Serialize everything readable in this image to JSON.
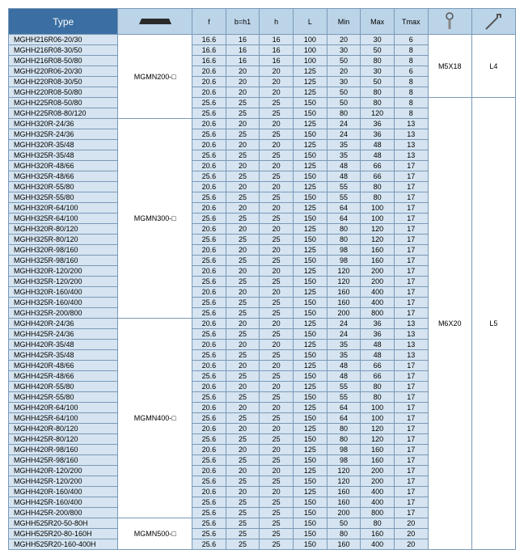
{
  "header": {
    "type": "Type",
    "f": "f",
    "bh1": "b=h1",
    "h": "h",
    "L": "L",
    "min": "Min",
    "max": "Max",
    "tmax": "Tmax"
  },
  "screws": [
    {
      "label": "M5X18",
      "wrench": "L4"
    },
    {
      "label": "M6X20",
      "wrench": "L5"
    }
  ],
  "groups": [
    {
      "insert": "MGMN200-□",
      "screw_rowspan": 6,
      "screw_idx": 0,
      "rows": [
        {
          "type": "MGHH216R06-20/30",
          "f": "16.6",
          "b": "16",
          "h": "16",
          "L": "100",
          "min": "20",
          "max": "30",
          "t": "6"
        },
        {
          "type": "MGHH216R08-30/50",
          "f": "16.6",
          "b": "16",
          "h": "16",
          "L": "100",
          "min": "30",
          "max": "50",
          "t": "8"
        },
        {
          "type": "MGHH216R08-50/80",
          "f": "16.6",
          "b": "16",
          "h": "16",
          "L": "100",
          "min": "50",
          "max": "80",
          "t": "8"
        },
        {
          "type": "MGHH220R06-20/30",
          "f": "20.6",
          "b": "20",
          "h": "20",
          "L": "125",
          "min": "20",
          "max": "30",
          "t": "6"
        },
        {
          "type": "MGHH220R08-30/50",
          "f": "20.6",
          "b": "20",
          "h": "20",
          "L": "125",
          "min": "30",
          "max": "50",
          "t": "8"
        },
        {
          "type": "MGHH220R08-50/80",
          "f": "20.6",
          "b": "20",
          "h": "20",
          "L": "125",
          "min": "50",
          "max": "80",
          "t": "8"
        },
        {
          "type": "MGHH225R08-50/80",
          "f": "25.6",
          "b": "25",
          "h": "25",
          "L": "150",
          "min": "50",
          "max": "80",
          "t": "8"
        },
        {
          "type": "MGHH225R08-80/120",
          "f": "25.6",
          "b": "25",
          "h": "25",
          "L": "150",
          "min": "80",
          "max": "120",
          "t": "8"
        }
      ]
    },
    {
      "insert": "MGMN300-□",
      "rows": [
        {
          "type": "MGHH320R-24/36",
          "f": "20.6",
          "b": "20",
          "h": "20",
          "L": "125",
          "min": "24",
          "max": "36",
          "t": "13"
        },
        {
          "type": "MGHH325R-24/36",
          "f": "25.6",
          "b": "25",
          "h": "25",
          "L": "150",
          "min": "24",
          "max": "36",
          "t": "13"
        },
        {
          "type": "MGHH320R-35/48",
          "f": "20.6",
          "b": "20",
          "h": "20",
          "L": "125",
          "min": "35",
          "max": "48",
          "t": "13"
        },
        {
          "type": "MGHH325R-35/48",
          "f": "25.6",
          "b": "25",
          "h": "25",
          "L": "150",
          "min": "35",
          "max": "48",
          "t": "13"
        },
        {
          "type": "MGHH320R-48/66",
          "f": "20.6",
          "b": "20",
          "h": "20",
          "L": "125",
          "min": "48",
          "max": "66",
          "t": "17"
        },
        {
          "type": "MGHH325R-48/66",
          "f": "25.6",
          "b": "25",
          "h": "25",
          "L": "150",
          "min": "48",
          "max": "66",
          "t": "17"
        },
        {
          "type": "MGHH320R-55/80",
          "f": "20.6",
          "b": "20",
          "h": "20",
          "L": "125",
          "min": "55",
          "max": "80",
          "t": "17"
        },
        {
          "type": "MGHH325R-55/80",
          "f": "25.6",
          "b": "25",
          "h": "25",
          "L": "150",
          "min": "55",
          "max": "80",
          "t": "17"
        },
        {
          "type": "MGHH320R-64/100",
          "f": "20.6",
          "b": "20",
          "h": "20",
          "L": "125",
          "min": "64",
          "max": "100",
          "t": "17"
        },
        {
          "type": "MGHH325R-64/100",
          "f": "25.6",
          "b": "25",
          "h": "25",
          "L": "150",
          "min": "64",
          "max": "100",
          "t": "17"
        },
        {
          "type": "MGHH320R-80/120",
          "f": "20.6",
          "b": "20",
          "h": "20",
          "L": "125",
          "min": "80",
          "max": "120",
          "t": "17"
        },
        {
          "type": "MGHH325R-80/120",
          "f": "25.6",
          "b": "25",
          "h": "25",
          "L": "150",
          "min": "80",
          "max": "120",
          "t": "17"
        },
        {
          "type": "MGHH320R-98/160",
          "f": "20.6",
          "b": "20",
          "h": "20",
          "L": "125",
          "min": "98",
          "max": "160",
          "t": "17"
        },
        {
          "type": "MGHH325R-98/160",
          "f": "25.6",
          "b": "25",
          "h": "25",
          "L": "150",
          "min": "98",
          "max": "160",
          "t": "17"
        },
        {
          "type": "MGHH320R-120/200",
          "f": "20.6",
          "b": "20",
          "h": "20",
          "L": "125",
          "min": "120",
          "max": "200",
          "t": "17"
        },
        {
          "type": "MGHH325R-120/200",
          "f": "25.6",
          "b": "25",
          "h": "25",
          "L": "150",
          "min": "120",
          "max": "200",
          "t": "17"
        },
        {
          "type": "MGHH320R-160/400",
          "f": "20.6",
          "b": "20",
          "h": "20",
          "L": "125",
          "min": "160",
          "max": "400",
          "t": "17"
        },
        {
          "type": "MGHH325R-160/400",
          "f": "25.6",
          "b": "25",
          "h": "25",
          "L": "150",
          "min": "160",
          "max": "400",
          "t": "17"
        },
        {
          "type": "MGHH325R-200/800",
          "f": "25.6",
          "b": "25",
          "h": "25",
          "L": "150",
          "min": "200",
          "max": "800",
          "t": "17"
        }
      ]
    },
    {
      "insert": "MGMN400-□",
      "rows": [
        {
          "type": "MGHH420R-24/36",
          "f": "20.6",
          "b": "20",
          "h": "20",
          "L": "125",
          "min": "24",
          "max": "36",
          "t": "13"
        },
        {
          "type": "MGHH425R-24/36",
          "f": "25.6",
          "b": "25",
          "h": "25",
          "L": "150",
          "min": "24",
          "max": "36",
          "t": "13"
        },
        {
          "type": "MGHH420R-35/48",
          "f": "20.6",
          "b": "20",
          "h": "20",
          "L": "125",
          "min": "35",
          "max": "48",
          "t": "13"
        },
        {
          "type": "MGHH425R-35/48",
          "f": "25.6",
          "b": "25",
          "h": "25",
          "L": "150",
          "min": "35",
          "max": "48",
          "t": "13"
        },
        {
          "type": "MGHH420R-48/66",
          "f": "20.6",
          "b": "20",
          "h": "20",
          "L": "125",
          "min": "48",
          "max": "66",
          "t": "17"
        },
        {
          "type": "MGHH425R-48/66",
          "f": "25.6",
          "b": "25",
          "h": "25",
          "L": "150",
          "min": "48",
          "max": "66",
          "t": "17"
        },
        {
          "type": "MGHH420R-55/80",
          "f": "20.6",
          "b": "20",
          "h": "20",
          "L": "125",
          "min": "55",
          "max": "80",
          "t": "17"
        },
        {
          "type": "MGHH425R-55/80",
          "f": "25.6",
          "b": "25",
          "h": "25",
          "L": "150",
          "min": "55",
          "max": "80",
          "t": "17"
        },
        {
          "type": "MGHH420R-64/100",
          "f": "20.6",
          "b": "20",
          "h": "20",
          "L": "125",
          "min": "64",
          "max": "100",
          "t": "17"
        },
        {
          "type": "MGHH425R-64/100",
          "f": "25.6",
          "b": "25",
          "h": "25",
          "L": "150",
          "min": "64",
          "max": "100",
          "t": "17"
        },
        {
          "type": "MGHH420R-80/120",
          "f": "20.6",
          "b": "20",
          "h": "20",
          "L": "125",
          "min": "80",
          "max": "120",
          "t": "17"
        },
        {
          "type": "MGHH425R-80/120",
          "f": "25.6",
          "b": "25",
          "h": "25",
          "L": "150",
          "min": "80",
          "max": "120",
          "t": "17"
        },
        {
          "type": "MGHH420R-98/160",
          "f": "20.6",
          "b": "20",
          "h": "20",
          "L": "125",
          "min": "98",
          "max": "160",
          "t": "17"
        },
        {
          "type": "MGHH425R-98/160",
          "f": "25.6",
          "b": "25",
          "h": "25",
          "L": "150",
          "min": "98",
          "max": "160",
          "t": "17"
        },
        {
          "type": "MGHH420R-120/200",
          "f": "20.6",
          "b": "20",
          "h": "20",
          "L": "125",
          "min": "120",
          "max": "200",
          "t": "17"
        },
        {
          "type": "MGHH425R-120/200",
          "f": "25.6",
          "b": "25",
          "h": "25",
          "L": "150",
          "min": "120",
          "max": "200",
          "t": "17"
        },
        {
          "type": "MGHH420R-160/400",
          "f": "20.6",
          "b": "20",
          "h": "20",
          "L": "125",
          "min": "160",
          "max": "400",
          "t": "17"
        },
        {
          "type": "MGHH425R-160/400",
          "f": "25.6",
          "b": "25",
          "h": "25",
          "L": "150",
          "min": "160",
          "max": "400",
          "t": "17"
        },
        {
          "type": "MGHH425R-200/800",
          "f": "25.6",
          "b": "25",
          "h": "25",
          "L": "150",
          "min": "200",
          "max": "800",
          "t": "17"
        }
      ]
    },
    {
      "insert": "MGMN500-□",
      "rows": [
        {
          "type": "MGHH525R20-50-80H",
          "f": "25.6",
          "b": "25",
          "h": "25",
          "L": "150",
          "min": "50",
          "max": "80",
          "t": "20"
        },
        {
          "type": "MGHH525R20-80-160H",
          "f": "25.6",
          "b": "25",
          "h": "25",
          "L": "150",
          "min": "80",
          "max": "160",
          "t": "20"
        },
        {
          "type": "MGHH525R20-160-400H",
          "f": "25.6",
          "b": "25",
          "h": "25",
          "L": "150",
          "min": "160",
          "max": "400",
          "t": "20"
        }
      ]
    }
  ]
}
